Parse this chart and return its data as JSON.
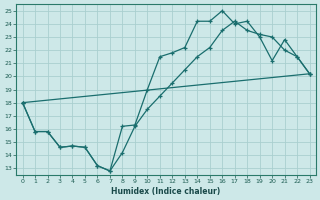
{
  "xlabel": "Humidex (Indice chaleur)",
  "bg_color": "#cde8e8",
  "grid_color": "#b0d4d4",
  "line_color": "#1a6e6e",
  "xlim": [
    -0.5,
    23.5
  ],
  "ylim": [
    12.5,
    25.5
  ],
  "xticks": [
    0,
    1,
    2,
    3,
    4,
    5,
    6,
    7,
    8,
    9,
    10,
    11,
    12,
    13,
    14,
    15,
    16,
    17,
    18,
    19,
    20,
    21,
    22,
    23
  ],
  "yticks": [
    13,
    14,
    15,
    16,
    17,
    18,
    19,
    20,
    21,
    22,
    23,
    24,
    25
  ],
  "line1_x": [
    0,
    1,
    2,
    3,
    4,
    5,
    6,
    7,
    8,
    9,
    10,
    11,
    12,
    13,
    14,
    15,
    16,
    17,
    18,
    19,
    20,
    21,
    22,
    23
  ],
  "line1_y": [
    18.0,
    15.8,
    15.8,
    14.6,
    14.7,
    14.6,
    13.2,
    12.8,
    16.2,
    16.3,
    19.0,
    21.5,
    21.8,
    22.2,
    24.2,
    24.2,
    25.0,
    24.0,
    24.2,
    23.0,
    21.2,
    22.8,
    21.5,
    20.2
  ],
  "line2_x": [
    0,
    1,
    2,
    3,
    4,
    5,
    6,
    7,
    8,
    9,
    10,
    11,
    12,
    13,
    14,
    15,
    16,
    17,
    18,
    19,
    20,
    21,
    22,
    23
  ],
  "line2_y": [
    18.0,
    15.8,
    15.8,
    14.6,
    14.7,
    14.6,
    13.2,
    12.8,
    14.2,
    16.2,
    17.5,
    18.5,
    19.5,
    20.5,
    21.5,
    22.2,
    23.5,
    24.2,
    23.5,
    23.2,
    23.0,
    22.0,
    21.5,
    20.2
  ],
  "line3_x": [
    0,
    23
  ],
  "line3_y": [
    18.0,
    20.2
  ]
}
